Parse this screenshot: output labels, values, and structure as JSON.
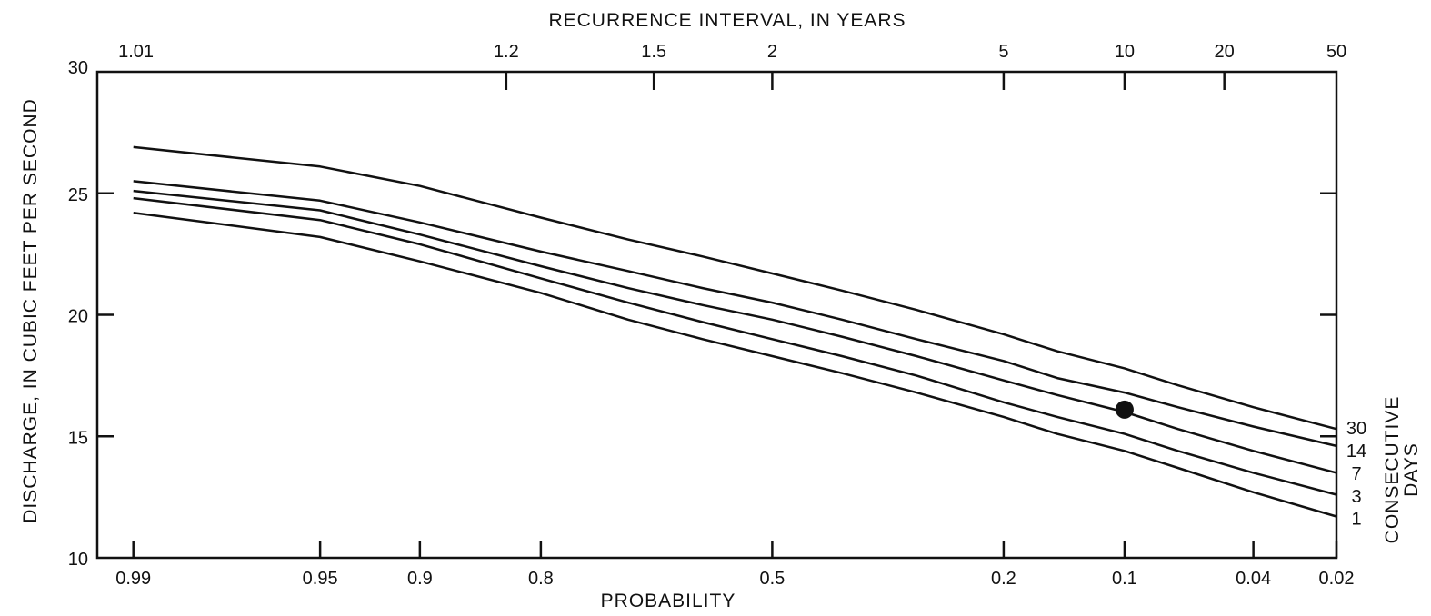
{
  "chart_data": {
    "type": "line",
    "xlabel": "PROBABILITY",
    "x2label": "RECURRENCE INTERVAL, IN YEARS",
    "ylabel": "DISCHARGE, IN CUBIC FEET PER SECOND",
    "legend_title": "CONSECUTIVE DAYS",
    "x_scale": "normal-probability",
    "xlim": [
      0.99,
      0.02
    ],
    "ylim": [
      10,
      30
    ],
    "grid": false,
    "y_ticks": [
      {
        "value": 10,
        "label": "10"
      },
      {
        "value": 15,
        "label": "15"
      },
      {
        "value": 20,
        "label": "20"
      },
      {
        "value": 25,
        "label": "25"
      },
      {
        "value": 30,
        "label": "30"
      }
    ],
    "x_ticks": [
      {
        "value": 0.99,
        "label": "0.99"
      },
      {
        "value": 0.95,
        "label": "0.95"
      },
      {
        "value": 0.9,
        "label": "0.9"
      },
      {
        "value": 0.8,
        "label": "0.8"
      },
      {
        "value": 0.5,
        "label": "0.5"
      },
      {
        "value": 0.2,
        "label": "0.2"
      },
      {
        "value": 0.1,
        "label": "0.1"
      },
      {
        "value": 0.04,
        "label": "0.04"
      },
      {
        "value": 0.02,
        "label": "0.02"
      }
    ],
    "x2_ticks": [
      {
        "value": 1.01,
        "label": "1.01"
      },
      {
        "value": 1.2,
        "label": "1.2"
      },
      {
        "value": 1.5,
        "label": "1.5"
      },
      {
        "value": 2,
        "label": "2"
      },
      {
        "value": 5,
        "label": "5"
      },
      {
        "value": 10,
        "label": "10"
      },
      {
        "value": 20,
        "label": "20"
      },
      {
        "value": 50,
        "label": "50"
      }
    ],
    "x": [
      0.99,
      0.95,
      0.9,
      0.8,
      0.7,
      0.6,
      0.5,
      0.4,
      0.3,
      0.2,
      0.15,
      0.1,
      0.07,
      0.04,
      0.02
    ],
    "series": [
      {
        "name": "30",
        "values": [
          26.9,
          26.1,
          25.3,
          24.0,
          23.1,
          22.4,
          21.7,
          21.0,
          20.2,
          19.2,
          18.5,
          17.8,
          17.1,
          16.2,
          15.3
        ]
      },
      {
        "name": "14",
        "values": [
          25.5,
          24.7,
          23.8,
          22.6,
          21.8,
          21.1,
          20.5,
          19.8,
          19.0,
          18.1,
          17.4,
          16.8,
          16.2,
          15.4,
          14.6
        ]
      },
      {
        "name": "7",
        "values": [
          25.1,
          24.3,
          23.3,
          22.0,
          21.1,
          20.4,
          19.8,
          19.1,
          18.3,
          17.3,
          16.7,
          16.0,
          15.3,
          14.4,
          13.5
        ]
      },
      {
        "name": "3",
        "values": [
          24.8,
          23.9,
          22.9,
          21.5,
          20.5,
          19.7,
          19.0,
          18.3,
          17.5,
          16.4,
          15.8,
          15.1,
          14.4,
          13.5,
          12.6
        ]
      },
      {
        "name": "1",
        "values": [
          24.2,
          23.2,
          22.2,
          20.9,
          19.8,
          19.0,
          18.3,
          17.6,
          16.8,
          15.8,
          15.1,
          14.4,
          13.7,
          12.7,
          11.7
        ]
      }
    ],
    "points": [
      {
        "x": 0.1,
        "y": 16.1
      }
    ]
  }
}
